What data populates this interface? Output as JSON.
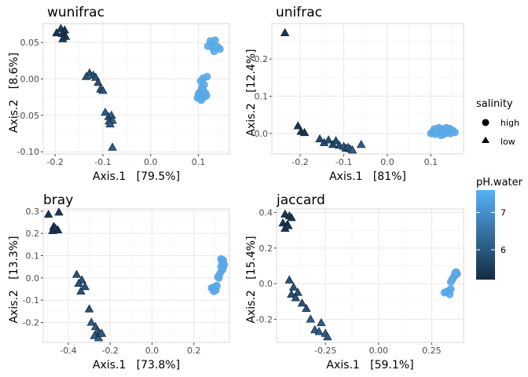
{
  "legend": {
    "shape_title": "salinity",
    "shape_items": [
      {
        "label": "high",
        "shape": "circle"
      },
      {
        "label": "low",
        "shape": "triangle"
      }
    ],
    "color_title": "pH.water",
    "color_ticks": [
      6,
      7
    ],
    "color_range": [
      5.2,
      7.6
    ],
    "color_low": "#132B43",
    "color_high": "#56B1F7"
  },
  "chart_data": [
    {
      "type": "scatter",
      "title": "wunifrac",
      "xlabel": "Axis.1   [79.5%]",
      "ylabel": "Axis.2   [8.6%]",
      "xlim": [
        -0.225,
        0.165
      ],
      "ylim": [
        -0.103,
        0.076
      ],
      "xticks": [
        -0.2,
        -0.1,
        0.0,
        0.1
      ],
      "xtick_labels": [
        "-0.2",
        "-0.1",
        "0.0",
        "0.1"
      ],
      "yticks": [
        -0.1,
        -0.05,
        0.0,
        0.05
      ],
      "ytick_labels": [
        "-0.10",
        "-0.05",
        "0.00",
        "0.05"
      ],
      "high": {
        "ph": 7.5,
        "points": [
          [
            0.125,
            0.052
          ],
          [
            0.135,
            0.053
          ],
          [
            0.128,
            0.048
          ],
          [
            0.14,
            0.044
          ],
          [
            0.13,
            0.043
          ],
          [
            0.145,
            0.041
          ],
          [
            0.133,
            0.038
          ],
          [
            0.12,
            0.045
          ],
          [
            0.118,
            0.003
          ],
          [
            0.11,
            0.001
          ],
          [
            0.105,
            -0.003
          ],
          [
            0.112,
            -0.008
          ],
          [
            0.107,
            -0.012
          ],
          [
            0.11,
            -0.015
          ],
          [
            0.103,
            -0.018
          ],
          [
            0.115,
            -0.02
          ],
          [
            0.108,
            -0.022
          ],
          [
            0.101,
            -0.024
          ],
          [
            0.112,
            -0.025
          ],
          [
            0.104,
            -0.027
          ],
          [
            0.098,
            -0.026
          ],
          [
            0.117,
            -0.023
          ],
          [
            0.106,
            -0.029
          ],
          [
            0.1,
            -0.021
          ]
        ]
      },
      "low": [
        {
          "ph": 5.4,
          "points": [
            [
              -0.188,
              0.069
            ],
            [
              -0.18,
              0.067
            ],
            [
              -0.197,
              0.063
            ],
            [
              -0.185,
              0.062
            ],
            [
              -0.178,
              0.058
            ],
            [
              -0.184,
              0.055
            ]
          ]
        },
        {
          "ph": 5.9,
          "points": [
            [
              -0.128,
              0.008
            ],
            [
              -0.12,
              0.005
            ],
            [
              -0.135,
              0.003
            ],
            [
              -0.115,
              0.002
            ],
            [
              -0.11,
              -0.005
            ],
            [
              -0.105,
              -0.014
            ],
            [
              -0.1,
              -0.016
            ]
          ]
        },
        {
          "ph": 6.1,
          "points": [
            [
              -0.095,
              -0.046
            ],
            [
              -0.088,
              -0.052
            ],
            [
              -0.082,
              -0.05
            ],
            [
              -0.087,
              -0.058
            ],
            [
              -0.08,
              -0.057
            ],
            [
              -0.085,
              -0.062
            ],
            [
              -0.08,
              -0.094
            ]
          ]
        }
      ]
    },
    {
      "type": "scatter",
      "title": "unifrac",
      "xlabel": "Axis.1   [81%]",
      "ylabel": "Axis.2   [12.4%]",
      "xlim": [
        -0.265,
        0.175
      ],
      "ylim": [
        -0.055,
        0.295
      ],
      "xticks": [
        -0.2,
        -0.1,
        0.0,
        0.1
      ],
      "xtick_labels": [
        "-0.2",
        "-0.1",
        "0.0",
        "0.1"
      ],
      "yticks": [
        0.0,
        0.1,
        0.2
      ],
      "ytick_labels": [
        "0.0",
        "0.1",
        "0.2"
      ],
      "high": {
        "ph": 7.5,
        "points": [
          [
            0.1,
            0.0
          ],
          [
            0.105,
            0.005
          ],
          [
            0.11,
            -0.002
          ],
          [
            0.115,
            0.01
          ],
          [
            0.12,
            0.003
          ],
          [
            0.125,
            0.012
          ],
          [
            0.13,
            0.005
          ],
          [
            0.135,
            0.015
          ],
          [
            0.138,
            0.002
          ],
          [
            0.14,
            0.01
          ],
          [
            0.145,
            0.0
          ],
          [
            0.15,
            0.008
          ],
          [
            0.155,
            0.003
          ],
          [
            0.108,
            0.012
          ],
          [
            0.118,
            0.015
          ],
          [
            0.128,
            -0.003
          ],
          [
            0.133,
            0.0
          ],
          [
            0.143,
            0.013
          ],
          [
            0.123,
            -0.005
          ],
          [
            0.113,
            0.006
          ]
        ]
      },
      "low": [
        {
          "ph": 5.4,
          "points": [
            [
              -0.235,
              0.27
            ],
            [
              -0.205,
              0.02
            ],
            [
              -0.198,
              0.005
            ],
            [
              -0.19,
              0.002
            ]
          ]
        },
        {
          "ph": 5.8,
          "points": [
            [
              -0.155,
              -0.015
            ],
            [
              -0.145,
              -0.025
            ],
            [
              -0.135,
              -0.018
            ],
            [
              -0.125,
              -0.03
            ],
            [
              -0.118,
              -0.02
            ],
            [
              -0.11,
              -0.032
            ]
          ]
        },
        {
          "ph": 6.1,
          "points": [
            [
              -0.1,
              -0.035
            ],
            [
              -0.095,
              -0.04
            ],
            [
              -0.09,
              -0.038
            ],
            [
              -0.085,
              -0.042
            ],
            [
              -0.08,
              -0.045
            ],
            [
              -0.06,
              -0.03
            ]
          ]
        }
      ]
    },
    {
      "type": "scatter",
      "title": "bray",
      "xlabel": "Axis.1   [73.8%]",
      "ylabel": "Axis.2   [13.3%]",
      "xlim": [
        -0.52,
        0.37
      ],
      "ylim": [
        -0.29,
        0.31
      ],
      "xticks": [
        -0.4,
        -0.2,
        0.0,
        0.2
      ],
      "xtick_labels": [
        "-0.4",
        "-0.2",
        "0.0",
        "0.2"
      ],
      "yticks": [
        -0.2,
        -0.1,
        0.0,
        0.1,
        0.2,
        0.3
      ],
      "ytick_labels": [
        "-0.2",
        "-0.1",
        "0.0",
        "0.1",
        "0.2",
        "0.3"
      ],
      "high": {
        "ph": 7.5,
        "points": [
          [
            0.33,
            0.085
          ],
          [
            0.34,
            0.08
          ],
          [
            0.335,
            0.07
          ],
          [
            0.345,
            0.06
          ],
          [
            0.33,
            0.05
          ],
          [
            0.34,
            0.045
          ],
          [
            0.335,
            0.035
          ],
          [
            0.325,
            0.02
          ],
          [
            0.315,
            0.005
          ],
          [
            0.3,
            -0.04
          ],
          [
            0.29,
            -0.05
          ],
          [
            0.305,
            -0.055
          ],
          [
            0.295,
            -0.06
          ],
          [
            0.285,
            -0.045
          ],
          [
            0.31,
            -0.035
          ],
          [
            0.32,
            0.0
          ]
        ]
      },
      "low": [
        {
          "ph": 5.4,
          "points": [
            [
              -0.495,
              0.285
            ],
            [
              -0.445,
              0.295
            ],
            [
              -0.47,
              0.23
            ],
            [
              -0.46,
              0.22
            ],
            [
              -0.45,
              0.215
            ],
            [
              -0.475,
              0.212
            ],
            [
              -0.465,
              0.225
            ]
          ]
        },
        {
          "ph": 5.9,
          "points": [
            [
              -0.36,
              0.015
            ],
            [
              -0.335,
              -0.01
            ],
            [
              -0.35,
              -0.025
            ],
            [
              -0.32,
              -0.04
            ],
            [
              -0.34,
              -0.06
            ],
            [
              -0.3,
              -0.14
            ]
          ]
        },
        {
          "ph": 6.1,
          "points": [
            [
              -0.29,
              -0.2
            ],
            [
              -0.27,
              -0.22
            ],
            [
              -0.26,
              -0.24
            ],
            [
              -0.25,
              -0.25
            ],
            [
              -0.275,
              -0.26
            ],
            [
              -0.255,
              -0.27
            ],
            [
              -0.24,
              -0.25
            ]
          ]
        }
      ]
    },
    {
      "type": "scatter",
      "title": "jaccard",
      "xlabel": "Axis.1   [59.1%]",
      "ylabel": "Axis.2   [15.4%]",
      "xlim": [
        -0.48,
        0.4
      ],
      "ylim": [
        -0.33,
        0.42
      ],
      "xticks": [
        -0.25,
        0.0,
        0.25
      ],
      "xtick_labels": [
        "-0.25",
        "0.00",
        "0.25"
      ],
      "yticks": [
        -0.2,
        0.0,
        0.2,
        0.4
      ],
      "ytick_labels": [
        "-0.2",
        "0.0",
        "0.2",
        "0.4"
      ],
      "high": {
        "ph": 7.5,
        "points": [
          [
            0.365,
            0.065
          ],
          [
            0.37,
            0.055
          ],
          [
            0.36,
            0.05
          ],
          [
            0.355,
            0.04
          ],
          [
            0.35,
            0.03
          ],
          [
            0.345,
            0.02
          ],
          [
            0.34,
            0.01
          ],
          [
            0.33,
            -0.04
          ],
          [
            0.32,
            -0.045
          ],
          [
            0.31,
            -0.05
          ],
          [
            0.34,
            -0.03
          ],
          [
            0.335,
            -0.06
          ],
          [
            0.36,
            0.06
          ]
        ]
      },
      "low": [
        {
          "ph": 5.4,
          "points": [
            [
              -0.44,
              0.39
            ],
            [
              -0.42,
              0.38
            ],
            [
              -0.45,
              0.34
            ],
            [
              -0.43,
              0.33
            ],
            [
              -0.41,
              0.37
            ],
            [
              -0.44,
              0.31
            ],
            [
              -0.425,
              0.325
            ]
          ]
        },
        {
          "ph": 5.9,
          "points": [
            [
              -0.42,
              0.02
            ],
            [
              -0.4,
              -0.02
            ],
            [
              -0.38,
              -0.05
            ],
            [
              -0.41,
              -0.06
            ],
            [
              -0.36,
              -0.11
            ],
            [
              -0.34,
              -0.14
            ],
            [
              -0.39,
              -0.08
            ]
          ]
        },
        {
          "ph": 6.1,
          "points": [
            [
              -0.32,
              -0.2
            ],
            [
              -0.3,
              -0.26
            ],
            [
              -0.28,
              -0.27
            ],
            [
              -0.25,
              -0.28
            ],
            [
              -0.24,
              -0.3
            ],
            [
              -0.27,
              -0.22
            ]
          ]
        }
      ]
    }
  ]
}
